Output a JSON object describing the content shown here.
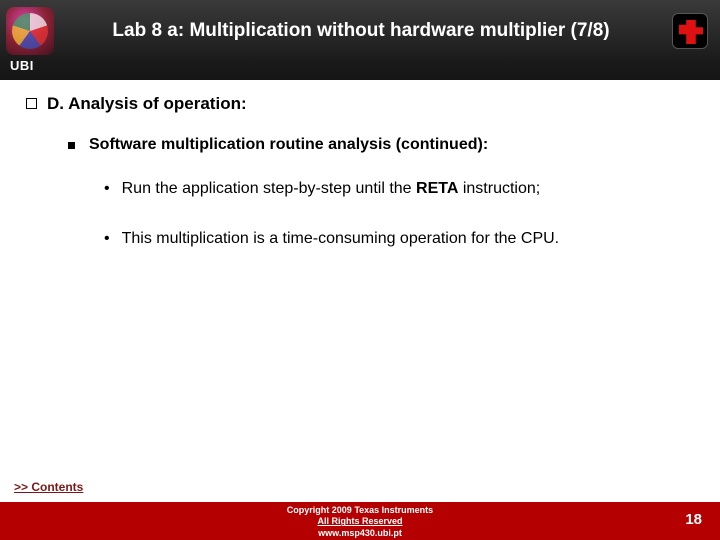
{
  "colors": {
    "footer_bg": "#b40000",
    "header_bg_top": "#3a3a3a",
    "header_bg_bottom": "#1a1a1a",
    "content_bg": "#ffffff",
    "link_color": "#7a1818"
  },
  "header": {
    "title": "Lab 8 a: Multiplication without hardware multiplier (7/8)",
    "left_label": "UBI",
    "left_icon": "university-crest-icon",
    "right_icon": "ti-logo-icon"
  },
  "body": {
    "section": "D. Analysis of operation:",
    "subhead": "Software multiplication routine analysis (continued):",
    "bullets": [
      {
        "pre": "Run the application step-by-step until the ",
        "bold": "RETA",
        "post": " instruction;"
      },
      {
        "pre": "This multiplication is a time-consuming operation for the CPU.",
        "bold": "",
        "post": ""
      }
    ],
    "contents_link": ">> Contents"
  },
  "footer": {
    "line1": "Copyright 2009 Texas Instruments",
    "line2": "All Rights Reserved",
    "line3": "www.msp430.ubi.pt",
    "page": "18"
  }
}
